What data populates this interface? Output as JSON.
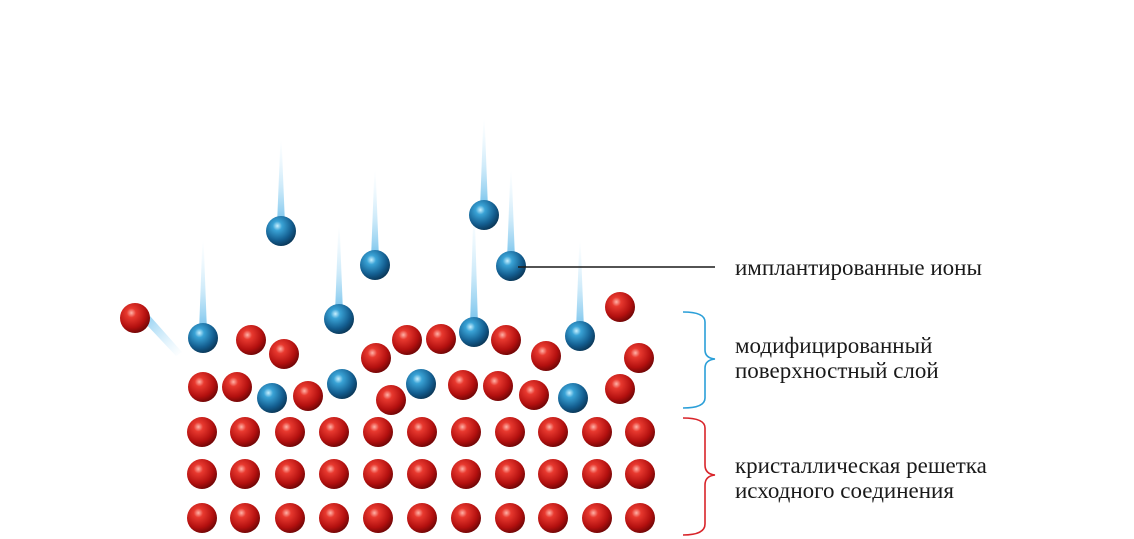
{
  "colors": {
    "lattice_atom": "#c8171c",
    "ion": "#1d72a6",
    "ion_trail": "#9ed4f2",
    "modified_brace": "#2b9fd8",
    "crystal_brace": "#d8242a",
    "leader_line": "#1a1a1a"
  },
  "labels": {
    "implanted_ions": "имплантированные ионы",
    "modified_layer": [
      "модифицированный",
      "поверхностный слой"
    ],
    "crystal_lattice": [
      "кристаллическая решетка",
      "исходного соединения"
    ]
  }
}
